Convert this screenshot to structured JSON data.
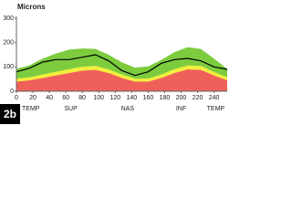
{
  "chart_data": {
    "type": "area",
    "title": "Microns",
    "panel_label": "2b",
    "x": [
      0,
      16,
      32,
      48,
      64,
      80,
      96,
      112,
      128,
      144,
      160,
      176,
      192,
      208,
      224,
      240,
      256
    ],
    "stacked": true,
    "series": [
      {
        "name": "red",
        "kind": "area",
        "color": "#f0605a",
        "values": [
          40,
          45,
          55,
          65,
          75,
          85,
          88,
          75,
          55,
          40,
          40,
          55,
          75,
          90,
          88,
          65,
          45
        ]
      },
      {
        "name": "yellow",
        "kind": "area",
        "color": "#f2ee3a",
        "values": [
          12,
          12,
          14,
          15,
          16,
          16,
          16,
          15,
          14,
          12,
          12,
          14,
          16,
          16,
          16,
          14,
          12
        ]
      },
      {
        "name": "green",
        "kind": "area",
        "color": "#7ccc3e",
        "values": [
          40,
          50,
          65,
          75,
          80,
          75,
          70,
          60,
          50,
          45,
          50,
          60,
          70,
          75,
          70,
          55,
          35
        ]
      },
      {
        "name": "patient",
        "kind": "line",
        "color": "#000000",
        "values": [
          80,
          95,
          120,
          130,
          130,
          140,
          150,
          125,
          85,
          65,
          80,
          115,
          130,
          135,
          125,
          100,
          90
        ]
      }
    ],
    "xlim": [
      0,
      256
    ],
    "ylim": [
      0,
      300
    ],
    "xticks": [
      0,
      20,
      40,
      60,
      80,
      100,
      120,
      140,
      160,
      180,
      200,
      220,
      240
    ],
    "yticks": [
      0,
      100,
      200,
      300
    ],
    "section_ticks": [
      {
        "value": 0,
        "label": "TEMP"
      },
      {
        "value": 66,
        "label": "SUP"
      },
      {
        "value": 135,
        "label": "NAS"
      },
      {
        "value": 200,
        "label": "INF"
      },
      {
        "value": 242,
        "label": "TEMP"
      }
    ]
  }
}
